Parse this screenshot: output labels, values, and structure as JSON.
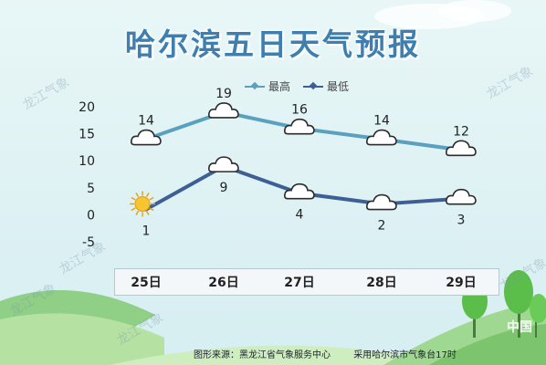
{
  "title": "哈尔滨五日天气预报",
  "footer": {
    "source": "图形来源：黑龙江省气象服务中心",
    "note": "采用哈尔滨市气象台17时"
  },
  "watermark": "龙江气象",
  "logo_text": "中国",
  "colors": {
    "high": "#5aa0bf",
    "low": "#3d5f96",
    "title": "#3f7fb0"
  },
  "chart_data": {
    "type": "line",
    "title": "哈尔滨五日天气预报",
    "categories": [
      "25日",
      "26日",
      "27日",
      "28日",
      "29日"
    ],
    "ylim": [
      -5,
      20
    ],
    "yticks": [
      20,
      15,
      10,
      5,
      0,
      -5
    ],
    "legend_position": "top",
    "grid": false,
    "series": [
      {
        "name": "最高",
        "values": [
          14,
          19,
          16,
          14,
          12
        ],
        "icons": [
          "cloud-icon",
          "cloud-icon",
          "cloud-icon",
          "cloud-icon",
          "cloud-icon"
        ]
      },
      {
        "name": "最低",
        "values": [
          1,
          9,
          4,
          2,
          3
        ],
        "icons": [
          "sun-icon",
          "cloud-icon",
          "cloud-icon",
          "cloud-icon",
          "cloud-icon"
        ]
      }
    ]
  }
}
